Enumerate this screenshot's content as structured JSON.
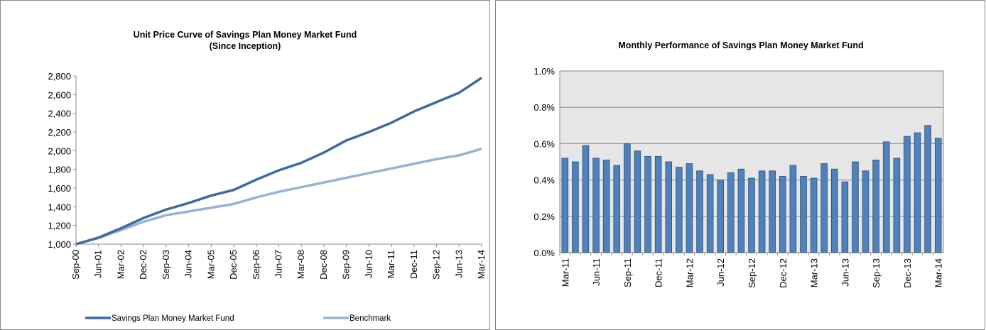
{
  "chart_data": [
    {
      "type": "line",
      "title": "Unit Price Curve of Savings Plan Money Market Fund",
      "subtitle": "(Since Inception)",
      "categories": [
        "Sep-00",
        "Jun-01",
        "Mar-02",
        "Dec-02",
        "Sep-03",
        "Jun-04",
        "Mar-05",
        "Dec-05",
        "Sep-06",
        "Jun-07",
        "Mar-08",
        "Dec-08",
        "Sep-09",
        "Jun-10",
        "Mar-11",
        "Dec-11",
        "Sep-12",
        "Jun-13",
        "Mar-14"
      ],
      "series": [
        {
          "name": "Savings Plan Money Market Fund",
          "color": "#3e6aa0",
          "values": [
            1000,
            1070,
            1170,
            1280,
            1370,
            1440,
            1520,
            1580,
            1690,
            1790,
            1870,
            1980,
            2110,
            2200,
            2300,
            2420,
            2520,
            2620,
            2780
          ]
        },
        {
          "name": "Benchmark",
          "color": "#95b3d7",
          "values": [
            1000,
            1065,
            1150,
            1240,
            1310,
            1350,
            1390,
            1430,
            1500,
            1560,
            1610,
            1660,
            1710,
            1760,
            1810,
            1860,
            1910,
            1950,
            2020
          ]
        }
      ],
      "ylim": [
        1000,
        2800
      ],
      "yticks": [
        {
          "value": 1000,
          "label": "1,000"
        },
        {
          "value": 1200,
          "label": "1,200"
        },
        {
          "value": 1400,
          "label": "1,400"
        },
        {
          "value": 1600,
          "label": "1,600"
        },
        {
          "value": 1800,
          "label": "1,800"
        },
        {
          "value": 2000,
          "label": "2,000"
        },
        {
          "value": 2200,
          "label": "2,200"
        },
        {
          "value": 2400,
          "label": "2,400"
        },
        {
          "value": 2600,
          "label": "2,600"
        },
        {
          "value": 2800,
          "label": "2,800"
        }
      ],
      "grid": false,
      "legend": "bottom"
    },
    {
      "type": "bar",
      "title": "Monthly Performance of Savings Plan Money Market Fund",
      "categories": [
        "Mar-11",
        null,
        null,
        "Jun-11",
        null,
        null,
        "Sep-11",
        null,
        null,
        "Dec-11",
        null,
        null,
        "Mar-12",
        null,
        null,
        "Jun-12",
        null,
        null,
        "Sep-12",
        null,
        null,
        "Dec-12",
        null,
        null,
        "Mar-13",
        null,
        null,
        "Jun-13",
        null,
        null,
        "Sep-13",
        null,
        null,
        "Dec-13",
        null,
        null,
        "Mar-14"
      ],
      "values": [
        0.52,
        0.5,
        0.59,
        0.52,
        0.51,
        0.48,
        0.6,
        0.56,
        0.53,
        0.53,
        0.5,
        0.47,
        0.49,
        0.45,
        0.43,
        0.4,
        0.44,
        0.46,
        0.41,
        0.45,
        0.45,
        0.42,
        0.48,
        0.42,
        0.41,
        0.49,
        0.46,
        0.39,
        0.5,
        0.45,
        0.51,
        0.61,
        0.52,
        0.64,
        0.66,
        0.7,
        0.63
      ],
      "color": "#4f81bd",
      "ylim": [
        0,
        1.0
      ],
      "yticks": [
        {
          "value": 0,
          "label": "0.0%"
        },
        {
          "value": 0.2,
          "label": "0.2%"
        },
        {
          "value": 0.4,
          "label": "0.4%"
        },
        {
          "value": 0.6,
          "label": "0.6%"
        },
        {
          "value": 0.8,
          "label": "0.8%"
        },
        {
          "value": 1.0,
          "label": "1.0%"
        }
      ],
      "grid": true
    }
  ]
}
